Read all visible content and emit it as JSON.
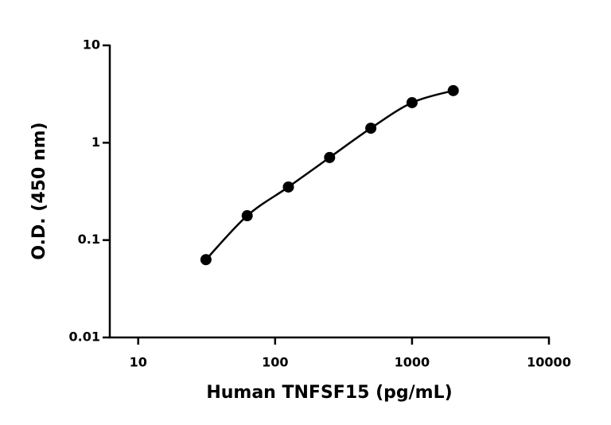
{
  "chart_data": {
    "type": "scatter",
    "x_label": "Human TNFSF15 (pg/mL)",
    "y_label": "O.D. (450 nm)",
    "log_x": true,
    "log_y": true,
    "xlim": [
      6.2,
      10000
    ],
    "xticks": [
      10,
      100,
      1000,
      10000
    ],
    "ylim": [
      0.01,
      10
    ],
    "yticks": [
      0.01,
      0.1,
      1,
      10
    ],
    "grid": false,
    "series": [
      {
        "color": "#000000",
        "x": [
          31.25,
          62.5,
          125,
          250,
          500,
          1000,
          2000
        ],
        "values": [
          0.063,
          0.178,
          0.351,
          0.705,
          1.41,
          2.58,
          3.43
        ]
      }
    ]
  }
}
